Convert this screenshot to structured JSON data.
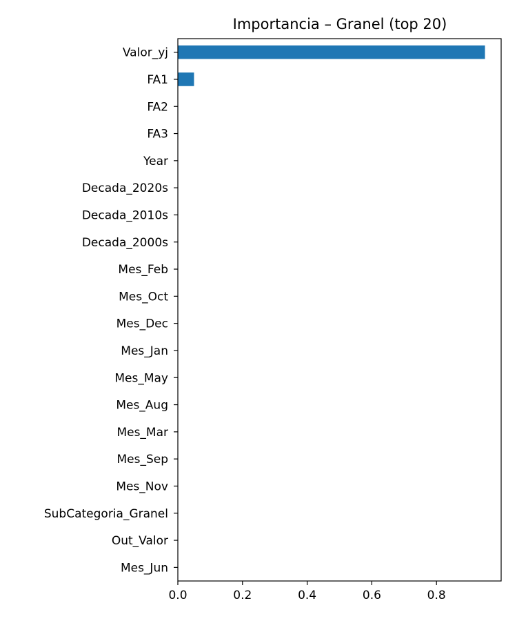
{
  "chart_data": {
    "type": "bar",
    "orientation": "horizontal",
    "title": "Importancia – Granel (top 20)",
    "xlabel": "",
    "ylabel": "",
    "xlim": [
      0,
      1.0
    ],
    "grid": false,
    "bar_color": "#1f77b4",
    "categories": [
      "Valor_yj",
      "FA1",
      "FA2",
      "FA3",
      "Year",
      "Decada_2020s",
      "Decada_2010s",
      "Decada_2000s",
      "Mes_Feb",
      "Mes_Oct",
      "Mes_Dec",
      "Mes_Jan",
      "Mes_May",
      "Mes_Aug",
      "Mes_Mar",
      "Mes_Sep",
      "Mes_Nov",
      "SubCategoria_Granel",
      "Out_Valor",
      "Mes_Jun"
    ],
    "values": [
      0.95,
      0.05,
      0.0,
      0.0,
      0.0,
      0.0,
      0.0,
      0.0,
      0.0,
      0.0,
      0.0,
      0.0,
      0.0,
      0.0,
      0.0,
      0.0,
      0.0,
      0.0,
      0.0,
      0.0
    ],
    "x_ticks": [
      "0.0",
      "0.2",
      "0.4",
      "0.6",
      "0.8"
    ],
    "x_tick_values": [
      0,
      0.2,
      0.4,
      0.6,
      0.8
    ]
  }
}
